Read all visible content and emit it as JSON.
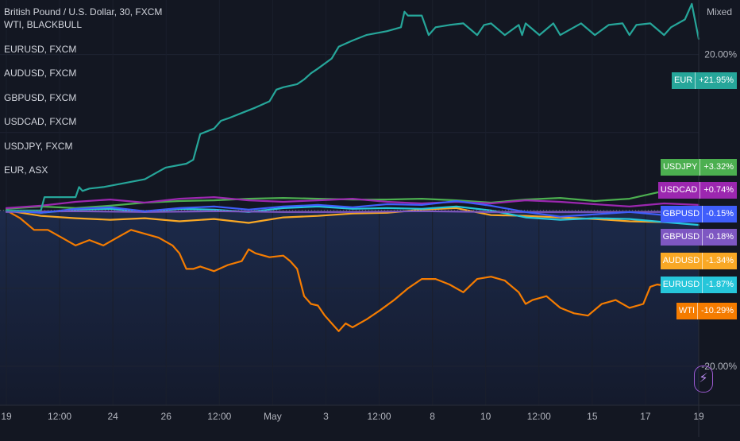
{
  "chart_data": {
    "type": "line",
    "title": "British Pound / U.S. Dollar, 30, FXCM",
    "scale_mode": "Mixed",
    "y_unit": "percent change",
    "ylim": [
      -25,
      27
    ],
    "grid": true,
    "legend_placement": "top-left",
    "legend_entries": [
      "WTI, BLACKBULL",
      "EURUSD, FXCM",
      "AUDUSD, FXCM",
      "GBPUSD, FXCM",
      "USDCAD, FXCM",
      "USDJPY, FXCM",
      "EUR, ASX"
    ],
    "x_ticks": [
      "19",
      "12:00",
      "24",
      "26",
      "12:00",
      "May",
      "3",
      "12:00",
      "8",
      "10",
      "12:00",
      "15",
      "17",
      "19"
    ],
    "y_ticks": [
      "20.00%",
      "-20.00%"
    ],
    "badges": [
      {
        "symbol": "EUR",
        "value": "+21.95%",
        "color": "#26a69a"
      },
      {
        "symbol": "USDJPY",
        "value": "+3.32%",
        "color": "#4caf50"
      },
      {
        "symbol": "USDCAD",
        "value": "+0.74%",
        "color": "#9c27b0"
      },
      {
        "symbol": "GBPUSD",
        "value": "-0.15%",
        "color": "#3f5efb"
      },
      {
        "symbol": "GBPUSD",
        "value": "-0.18%",
        "color": "#7e57c2"
      },
      {
        "symbol": "AUDUSD",
        "value": "-1.34%",
        "color": "#f9a825"
      },
      {
        "symbol": "EURUSD",
        "value": "-1.87%",
        "color": "#26c6da"
      },
      {
        "symbol": "WTI",
        "value": "-10.29%",
        "color": "#f57c00"
      }
    ],
    "x_index_range": [
      0,
      100
    ],
    "series": [
      {
        "name": "EUR",
        "color": "#26a69a",
        "x": [
          0,
          5,
          5.5,
          10,
          10.5,
          11,
          12,
          14,
          20,
          22,
          23,
          26,
          27,
          28,
          30,
          31,
          32,
          34,
          36,
          38,
          39,
          40,
          42,
          43,
          44,
          45,
          47,
          48,
          50,
          52,
          55,
          57,
          57.5,
          58,
          60,
          61,
          62,
          64,
          66,
          68,
          69,
          70,
          72,
          74,
          74.5,
          75,
          77,
          79,
          80,
          81,
          83,
          85,
          87,
          89,
          90,
          91,
          93,
          95,
          96,
          98,
          99,
          100
        ],
        "y": [
          0,
          0,
          1.7,
          1.7,
          3.0,
          2.5,
          2.8,
          3.0,
          4.0,
          5.0,
          5.5,
          6.0,
          6.5,
          9.8,
          10.5,
          11.5,
          11.8,
          12.5,
          13.2,
          14.0,
          15.5,
          15.8,
          16.2,
          16.8,
          17.6,
          18.2,
          19.5,
          21.0,
          21.8,
          22.5,
          23.0,
          23.5,
          25.5,
          25.0,
          25.0,
          22.5,
          23.5,
          23.8,
          24.0,
          22.5,
          23.8,
          24.0,
          22.5,
          23.8,
          22.5,
          24.0,
          22.5,
          24.0,
          22.5,
          23.0,
          24.0,
          22.5,
          23.8,
          24.0,
          22.5,
          23.8,
          24.0,
          22.5,
          23.5,
          24.5,
          26.5,
          22.0
        ]
      },
      {
        "name": "USDJPY",
        "color": "#4caf50",
        "x": [
          0,
          5,
          10,
          15,
          20,
          25,
          30,
          35,
          40,
          45,
          50,
          55,
          60,
          65,
          70,
          75,
          80,
          85,
          90,
          95,
          100
        ],
        "y": [
          0.2,
          0.5,
          0.3,
          0.6,
          1.0,
          1.2,
          1.3,
          1.5,
          1.6,
          1.5,
          1.4,
          1.4,
          1.5,
          1.3,
          1.0,
          1.4,
          1.6,
          1.2,
          1.5,
          2.5,
          3.3
        ]
      },
      {
        "name": "USDCAD",
        "color": "#9c27b0",
        "x": [
          0,
          5,
          10,
          15,
          20,
          25,
          30,
          35,
          40,
          45,
          50,
          55,
          60,
          65,
          70,
          75,
          80,
          85,
          90,
          95,
          100
        ],
        "y": [
          0.3,
          0.6,
          1.1,
          1.4,
          1.0,
          1.5,
          1.7,
          1.3,
          1.1,
          1.3,
          1.5,
          1.1,
          0.9,
          1.1,
          0.9,
          1.3,
          1.1,
          0.8,
          0.5,
          0.9,
          0.7
        ]
      },
      {
        "name": "GBPUSD",
        "color": "#3f5efb",
        "x": [
          0,
          5,
          10,
          15,
          20,
          25,
          30,
          35,
          40,
          45,
          50,
          55,
          60,
          65,
          70,
          75,
          80,
          85,
          90,
          95,
          100
        ],
        "y": [
          0,
          -0.3,
          0.2,
          0.4,
          -0.1,
          0.3,
          0.5,
          0.1,
          0.5,
          0.7,
          0.4,
          0.8,
          0.7,
          1.2,
          0.6,
          -0.2,
          -0.8,
          -0.5,
          -0.2,
          -0.6,
          -0.15
        ]
      },
      {
        "name": "GBPUSD",
        "color": "#7e57c2",
        "x": [
          0,
          10,
          20,
          30,
          40,
          50,
          60,
          70,
          80,
          90,
          100
        ],
        "y": [
          -0.2,
          -0.1,
          -0.2,
          -0.1,
          -0.2,
          -0.2,
          -0.1,
          -0.2,
          -0.2,
          -0.2,
          -0.18
        ]
      },
      {
        "name": "AUDUSD",
        "color": "#f9a825",
        "x": [
          0,
          5,
          10,
          15,
          20,
          25,
          30,
          35,
          40,
          45,
          50,
          55,
          60,
          65,
          70,
          75,
          80,
          85,
          90,
          95,
          100
        ],
        "y": [
          0,
          -0.7,
          -1.0,
          -1.2,
          -1.0,
          -1.4,
          -1.1,
          -1.6,
          -0.9,
          -0.7,
          -0.4,
          -0.3,
          0.1,
          0.3,
          -0.6,
          -0.7,
          -0.9,
          -1.1,
          -1.4,
          -1.5,
          -1.34
        ]
      },
      {
        "name": "EURUSD",
        "color": "#26c6da",
        "x": [
          0,
          5,
          10,
          15,
          20,
          25,
          30,
          35,
          40,
          45,
          50,
          55,
          60,
          65,
          70,
          75,
          80,
          85,
          90,
          95,
          100
        ],
        "y": [
          0,
          -0.3,
          0.1,
          0.2,
          -0.2,
          0.2,
          0.1,
          -0.2,
          0.3,
          0.5,
          0.2,
          0.3,
          0.2,
          0.5,
          0.0,
          -0.9,
          -1.2,
          -1.0,
          -1.1,
          -1.5,
          -1.87
        ]
      },
      {
        "name": "WTI",
        "color": "#f57c00",
        "x": [
          0,
          2,
          4,
          6,
          8,
          10,
          12,
          14,
          16,
          18,
          20,
          22,
          24,
          25,
          26,
          27,
          28,
          30,
          32,
          34,
          35,
          36,
          38,
          40,
          41,
          42,
          43,
          44,
          45,
          46,
          47,
          48,
          49,
          50,
          52,
          54,
          56,
          58,
          60,
          62,
          64,
          66,
          68,
          70,
          72,
          74,
          75,
          76,
          78,
          80,
          82,
          84,
          86,
          88,
          90,
          92,
          93,
          94,
          96,
          98,
          100
        ],
        "y": [
          0,
          -1.0,
          -2.5,
          -2.5,
          -3.5,
          -4.5,
          -3.8,
          -4.5,
          -3.5,
          -2.5,
          -3.0,
          -3.5,
          -4.5,
          -5.5,
          -7.5,
          -7.5,
          -7.2,
          -7.8,
          -7.0,
          -6.5,
          -5.0,
          -5.5,
          -6.0,
          -5.8,
          -6.5,
          -7.5,
          -11.0,
          -12.0,
          -12.2,
          -13.5,
          -14.5,
          -15.5,
          -14.5,
          -15.0,
          -14.0,
          -12.8,
          -11.5,
          -10.0,
          -8.8,
          -8.8,
          -9.5,
          -10.5,
          -8.8,
          -8.5,
          -9.0,
          -10.5,
          -12.0,
          -11.5,
          -11.0,
          -12.5,
          -13.2,
          -13.5,
          -12.0,
          -11.5,
          -12.5,
          -12.0,
          -9.8,
          -9.5,
          -9.8,
          -9.0,
          -10.3
        ]
      }
    ]
  }
}
